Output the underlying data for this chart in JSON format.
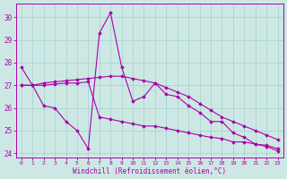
{
  "xlabel": "Windchill (Refroidissement éolien,°C)",
  "bg_color": "#cde8e4",
  "grid_color": "#a8d4d0",
  "line_color": "#aa00aa",
  "xlim": [
    -0.5,
    23.5
  ],
  "ylim": [
    23.8,
    30.6
  ],
  "yticks": [
    24,
    25,
    26,
    27,
    28,
    29,
    30
  ],
  "xticks": [
    0,
    1,
    2,
    3,
    4,
    5,
    6,
    7,
    8,
    9,
    10,
    11,
    12,
    13,
    14,
    15,
    16,
    17,
    18,
    19,
    20,
    21,
    22,
    23
  ],
  "line1_x": [
    0,
    1,
    2,
    3,
    4,
    5,
    6,
    7,
    8,
    9,
    10,
    11,
    12,
    13,
    14,
    15,
    16,
    17,
    18,
    19,
    20,
    21,
    22,
    23
  ],
  "line1_y": [
    27.8,
    27.0,
    26.1,
    26.0,
    25.4,
    25.0,
    24.2,
    29.3,
    30.2,
    27.8,
    26.3,
    26.5,
    27.1,
    26.6,
    26.5,
    26.1,
    25.8,
    25.4,
    25.4,
    24.9,
    24.7,
    24.4,
    24.3,
    24.1
  ],
  "line2_x": [
    0,
    1,
    2,
    3,
    4,
    5,
    6,
    7,
    8,
    9,
    10,
    11,
    12,
    13,
    14,
    15,
    16,
    17,
    18,
    19,
    20,
    21,
    22,
    23
  ],
  "line2_y": [
    27.0,
    27.0,
    27.1,
    27.15,
    27.2,
    27.25,
    27.3,
    27.35,
    27.4,
    27.4,
    27.3,
    27.2,
    27.1,
    26.9,
    26.7,
    26.5,
    26.2,
    25.9,
    25.6,
    25.4,
    25.2,
    25.0,
    24.8,
    24.6
  ],
  "line3_x": [
    0,
    1,
    2,
    3,
    4,
    5,
    6,
    7,
    8,
    9,
    10,
    11,
    12,
    13,
    14,
    15,
    16,
    17,
    18,
    19,
    20,
    21,
    22,
    23
  ],
  "line3_y": [
    27.0,
    27.0,
    27.0,
    27.05,
    27.1,
    27.1,
    27.15,
    25.6,
    25.5,
    25.4,
    25.3,
    25.2,
    25.2,
    25.1,
    25.0,
    24.9,
    24.8,
    24.7,
    24.65,
    24.5,
    24.5,
    24.4,
    24.35,
    24.2
  ]
}
